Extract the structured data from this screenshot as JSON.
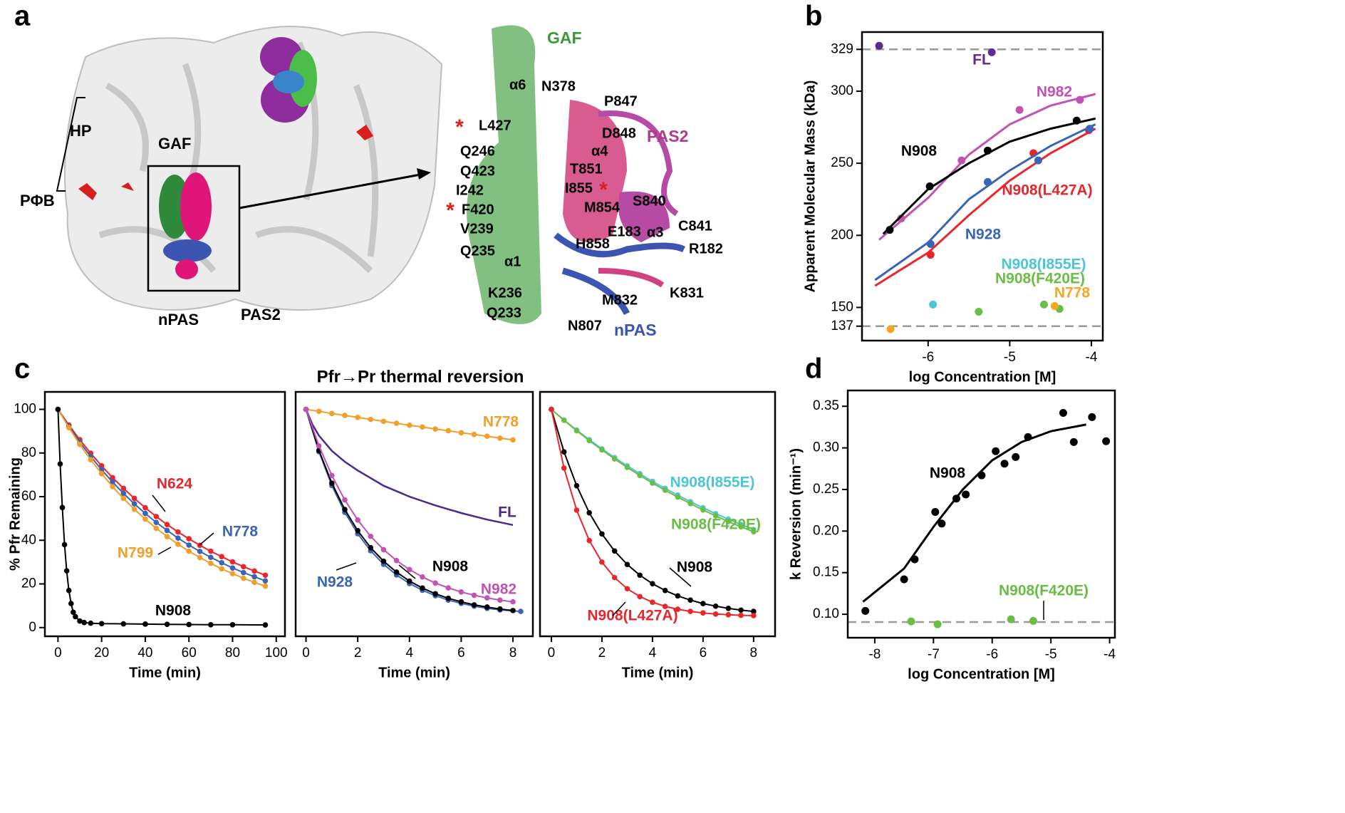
{
  "panel_letters": [
    "a",
    "b",
    "c",
    "d"
  ],
  "structure": {
    "left_labels": [
      "HP",
      "GAF",
      "PΦB",
      "nPAS",
      "PAS2"
    ],
    "right_labels": [
      {
        "text": "GAF",
        "color": "#3a9a3a"
      },
      {
        "text": "α6",
        "color": "#000000"
      },
      {
        "text": "N378",
        "color": "#000000"
      },
      {
        "text": "P847",
        "color": "#000000"
      },
      {
        "text": "L427",
        "color": "#000000"
      },
      {
        "text": "D848",
        "color": "#000000"
      },
      {
        "text": "PAS2",
        "color": "#b03a8c"
      },
      {
        "text": "α4",
        "color": "#000000"
      },
      {
        "text": "Q246",
        "color": "#000000"
      },
      {
        "text": "T851",
        "color": "#000000"
      },
      {
        "text": "Q423",
        "color": "#000000"
      },
      {
        "text": "I855",
        "color": "#000000"
      },
      {
        "text": "I242",
        "color": "#000000"
      },
      {
        "text": "S840",
        "color": "#000000"
      },
      {
        "text": "F420",
        "color": "#000000"
      },
      {
        "text": "M854",
        "color": "#000000"
      },
      {
        "text": "V239",
        "color": "#000000"
      },
      {
        "text": "E183",
        "color": "#000000"
      },
      {
        "text": "α3",
        "color": "#000000"
      },
      {
        "text": "C841",
        "color": "#000000"
      },
      {
        "text": "Q235",
        "color": "#000000"
      },
      {
        "text": "H858",
        "color": "#000000"
      },
      {
        "text": "R182",
        "color": "#000000"
      },
      {
        "text": "α1",
        "color": "#000000"
      },
      {
        "text": "K236",
        "color": "#000000"
      },
      {
        "text": "M832",
        "color": "#000000"
      },
      {
        "text": "K831",
        "color": "#000000"
      },
      {
        "text": "Q233",
        "color": "#000000"
      },
      {
        "text": "N807",
        "color": "#000000"
      },
      {
        "text": "nPAS",
        "color": "#3b55b0"
      }
    ]
  },
  "panel_c_title": "Pfr→Pr thermal reversion",
  "chart_data": [
    {
      "type": "scatter",
      "xlabel": "log Concentration [M]",
      "ylabel": "Apparent Molecular Mass (kDa)",
      "xlim": [
        -6.81,
        -3.86
      ],
      "ylim": [
        127,
        341
      ],
      "xticks": [
        -6,
        -5,
        -4
      ],
      "yticks": [
        137,
        150,
        200,
        250,
        300,
        329
      ],
      "ref_lines": [
        329,
        137
      ],
      "series": [
        {
          "name": "FL",
          "color": "#5b2d90",
          "x": [
            -6.6,
            -5.22
          ],
          "values": [
            331.5,
            327
          ]
        },
        {
          "name": "N982",
          "color": "#c153b5",
          "x": [
            -6.33,
            -5.59,
            -4.88,
            -4.14
          ],
          "values": [
            211.7,
            252,
            287,
            294
          ],
          "fit": {
            "x": [
              -6.6,
              -6,
              -5.5,
              -5,
              -4.5,
              -3.95
            ],
            "values": [
              197,
              226,
              256,
              277,
              290,
              298
            ]
          }
        },
        {
          "name": "N908",
          "color": "#000000",
          "x": [
            -6.47,
            -5.98,
            -5.27,
            -4.18
          ],
          "values": [
            203.8,
            234,
            258.8,
            279.6
          ],
          "fit": {
            "x": [
              -6.55,
              -6,
              -5.5,
              -5,
              -4.5,
              -3.95
            ],
            "values": [
              201,
              232,
              250,
              265,
              274,
              281
            ]
          }
        },
        {
          "name": "N908(L427A)",
          "color": "#e8262b",
          "x": [
            -5.97,
            -4.71,
            -4.03
          ],
          "values": [
            186.5,
            257,
            273
          ],
          "fit": {
            "x": [
              -6.65,
              -6,
              -5.5,
              -5,
              -4.5,
              -3.95
            ],
            "values": [
              165,
              188,
              214,
              238,
              257,
              274
            ]
          }
        },
        {
          "name": "N928",
          "color": "#3a64b5",
          "x": [
            -5.97,
            -5.27,
            -4.65,
            -4.02
          ],
          "values": [
            194,
            237,
            252,
            274
          ],
          "fit": {
            "x": [
              -6.65,
              -6,
              -5.5,
              -5,
              -4.5,
              -3.95
            ],
            "values": [
              169,
              195,
              225,
              245,
              262,
              277
            ]
          }
        },
        {
          "name": "N908(I855E)",
          "color": "#4ec5d6",
          "x": [
            -5.94
          ],
          "values": [
            152
          ]
        },
        {
          "name": "N908(F420E)",
          "color": "#6abd45",
          "x": [
            -5.38,
            -4.58,
            -4.39
          ],
          "values": [
            147,
            152,
            149
          ]
        },
        {
          "name": "N778",
          "color": "#f5a623",
          "x": [
            -6.46,
            -4.45
          ],
          "values": [
            135,
            151
          ]
        }
      ]
    },
    {
      "type": "line",
      "xlabel": "Time (min)",
      "ylabel": "% Pfr Remaining",
      "xlim": [
        -6,
        104
      ],
      "ylim": [
        -4,
        108
      ],
      "xticks": [
        0,
        20,
        40,
        60,
        80,
        100
      ],
      "yticks": [
        0,
        20,
        40,
        60,
        80,
        100
      ],
      "series": [
        {
          "name": "N624",
          "color": "#e8262b",
          "x": [
            0,
            5,
            10,
            15,
            20,
            25,
            30,
            35,
            40,
            45,
            50,
            55,
            60,
            65,
            70,
            75,
            80,
            85,
            90,
            95
          ],
          "values": [
            100,
            92.8,
            86.1,
            79.9,
            74.1,
            68.7,
            63.8,
            59.2,
            54.9,
            50.9,
            47.2,
            43.8,
            40.7,
            37.7,
            35.0,
            32.5,
            30.1,
            27.9,
            25.9,
            24.0
          ]
        },
        {
          "name": "N778",
          "color": "#3a64b5",
          "x": [
            0,
            5,
            10,
            15,
            20,
            25,
            30,
            35,
            40,
            45,
            50,
            55,
            60,
            65,
            70,
            75,
            80,
            85,
            90,
            95
          ],
          "values": [
            100,
            92.2,
            85.0,
            78.4,
            72.3,
            66.7,
            61.5,
            56.7,
            52.3,
            48.2,
            44.5,
            41.0,
            37.8,
            34.9,
            32.2,
            29.7,
            27.3,
            25.2,
            23.3,
            21.4
          ]
        },
        {
          "name": "N799",
          "color": "#f0a02a",
          "x": [
            0,
            5,
            10,
            15,
            20,
            25,
            30,
            35,
            40,
            45,
            50,
            55,
            60,
            65,
            70,
            75,
            80,
            85,
            90,
            95
          ],
          "values": [
            100,
            91.6,
            83.9,
            76.9,
            70.5,
            64.6,
            59.2,
            54.2,
            49.7,
            45.5,
            41.7,
            38.2,
            35.0,
            32.1,
            29.4,
            26.9,
            24.7,
            22.6,
            20.7,
            19.0
          ]
        },
        {
          "name": "N908",
          "color": "#000000",
          "x": [
            0,
            1,
            2,
            3,
            4,
            5,
            6,
            7,
            8,
            10,
            12,
            15,
            20,
            30,
            40,
            50,
            60,
            70,
            80,
            95
          ],
          "values": [
            100,
            75,
            55,
            38,
            26,
            17,
            11,
            7,
            5,
            3,
            2.3,
            2,
            1.8,
            1.7,
            1.6,
            1.5,
            1.4,
            1.3,
            1.3,
            1.2
          ]
        }
      ]
    },
    {
      "type": "line",
      "xlabel": "Time (min)",
      "xlim": [
        -0.4,
        8.77
      ],
      "ylim": [
        -4,
        108
      ],
      "xticks": [
        0,
        2,
        4,
        6,
        8
      ],
      "series": [
        {
          "name": "N778",
          "color": "#f0a02a",
          "x": [
            0,
            0.5,
            1,
            1.5,
            2,
            2.5,
            3,
            3.5,
            4,
            4.5,
            5,
            5.5,
            6,
            6.5,
            7,
            7.5,
            8
          ],
          "values": [
            100,
            99.1,
            98.1,
            97.2,
            96.3,
            95.4,
            94.5,
            93.6,
            92.7,
            91.9,
            91.0,
            90.2,
            89.3,
            88.5,
            87.7,
            86.8,
            86.0
          ]
        },
        {
          "name": "FL",
          "color": "#4b2a8f",
          "markers": false,
          "x": [
            0,
            0.25,
            0.5,
            1,
            1.5,
            2,
            3,
            4,
            5,
            6,
            7,
            8
          ],
          "values": [
            100,
            93,
            88,
            81,
            76,
            72,
            65,
            60,
            56,
            52.5,
            49.5,
            47
          ]
        },
        {
          "name": "N928",
          "color": "#3a64b5",
          "x": [
            0,
            0.5,
            1,
            1.5,
            2,
            2.5,
            3,
            3.5,
            4,
            4.5,
            5,
            5.5,
            6,
            6.5,
            7,
            7.5,
            8.3
          ],
          "values": [
            100,
            80.6,
            65.1,
            52.8,
            43.0,
            35.2,
            29.0,
            24.1,
            20.2,
            17.1,
            14.6,
            12.6,
            11.1,
            9.8,
            8.8,
            8.1,
            7.4
          ]
        },
        {
          "name": "N908",
          "color": "#000000",
          "x": [
            0,
            0.5,
            1,
            1.5,
            2,
            2.5,
            3,
            3.5,
            4,
            4.5,
            5,
            5.5,
            6,
            6.5,
            7,
            7.5,
            8
          ],
          "values": [
            100,
            81.2,
            66.2,
            54.1,
            44.4,
            36.6,
            30.4,
            25.4,
            21.3,
            18.1,
            15.5,
            13.4,
            11.8,
            10.4,
            9.4,
            8.5,
            7.8
          ]
        },
        {
          "name": "N982",
          "color": "#c153b5",
          "x": [
            0,
            0.5,
            1,
            1.5,
            2,
            2.5,
            3,
            3.5,
            4,
            4.5,
            5,
            5.5,
            6,
            6.5,
            7,
            7.5,
            8
          ],
          "values": [
            100,
            83.3,
            69.7,
            58.5,
            49.3,
            41.8,
            35.7,
            30.7,
            26.6,
            23.2,
            20.4,
            18.2,
            16.3,
            14.8,
            13.6,
            12.6,
            11.8
          ]
        }
      ]
    },
    {
      "type": "line",
      "xlabel": "Time (min)",
      "xlim": [
        -0.45,
        8.85
      ],
      "ylim": [
        -4,
        108
      ],
      "xticks": [
        0,
        2,
        4,
        6,
        8
      ],
      "series": [
        {
          "name": "N908(I855E)",
          "color": "#4ec5d6",
          "x": [
            0,
            0.5,
            1,
            1.5,
            2,
            2.5,
            3,
            3.5,
            4,
            4.5,
            5,
            5.5,
            6,
            6.5,
            7,
            7.5,
            8
          ],
          "values": [
            100,
            95.1,
            90.5,
            86.1,
            81.9,
            77.9,
            74.1,
            70.5,
            67.0,
            63.8,
            60.7,
            57.7,
            54.9,
            52.2,
            49.7,
            47.2,
            44.9
          ]
        },
        {
          "name": "N908(F420E)",
          "color": "#6abd45",
          "x": [
            0,
            0.5,
            1,
            1.5,
            2,
            2.5,
            3,
            3.5,
            4,
            4.5,
            5,
            5.5,
            6,
            6.5,
            7,
            7.5,
            8
          ],
          "values": [
            100,
            95.0,
            90.2,
            85.7,
            81.4,
            77.3,
            73.4,
            69.7,
            66.2,
            62.9,
            59.8,
            56.8,
            53.9,
            51.2,
            48.6,
            46.2,
            43.9
          ]
        },
        {
          "name": "N908",
          "color": "#000000",
          "x": [
            0,
            0.5,
            1,
            1.5,
            2,
            2.5,
            3,
            3.5,
            4,
            4.5,
            5,
            5.5,
            6,
            6.5,
            7,
            7.5,
            8
          ],
          "values": [
            100,
            80.5,
            65.0,
            52.6,
            42.9,
            35.1,
            28.9,
            24.0,
            20.1,
            17.0,
            14.5,
            12.6,
            11.0,
            9.8,
            8.8,
            8.0,
            7.4
          ]
        },
        {
          "name": "N908(L427A)",
          "color": "#e8262b",
          "x": [
            0,
            0.5,
            1,
            1.5,
            2,
            2.5,
            3,
            3.5,
            4,
            4.5,
            5,
            5.5,
            6,
            6.5,
            7,
            7.5,
            8
          ],
          "values": [
            100,
            73.1,
            53.8,
            39.9,
            30.0,
            22.9,
            17.8,
            14.2,
            11.6,
            9.7,
            8.4,
            7.4,
            6.7,
            6.2,
            5.9,
            5.6,
            5.5
          ]
        }
      ]
    },
    {
      "type": "scatter",
      "xlabel": "log Concentration [M]",
      "ylabel": "k Reversion (min⁻¹)",
      "xlim": [
        -8.46,
        -3.91
      ],
      "ylim": [
        0.0718,
        0.369
      ],
      "xticks": [
        -8,
        -7,
        -6,
        -5,
        -4
      ],
      "yticks": [
        {
          "value": 0.1,
          "label": "0.10"
        },
        0.15,
        {
          "value": 0.2,
          "label": "0.20"
        },
        0.25,
        {
          "value": 0.3,
          "label": "0.30"
        },
        0.35
      ],
      "ref_lines": [
        0.0906
      ],
      "series": [
        {
          "name": "N908",
          "color": "#000000",
          "x": [
            -8.16,
            -7.5,
            -7.32,
            -6.97,
            -6.86,
            -6.61,
            -6.45,
            -6.18,
            -5.94,
            -5.79,
            -5.6,
            -5.39,
            -4.79,
            -4.61,
            -4.3,
            -4.06
          ],
          "values": [
            0.104,
            0.142,
            0.166,
            0.223,
            0.209,
            0.239,
            0.244,
            0.267,
            0.296,
            0.281,
            0.289,
            0.313,
            0.342,
            0.307,
            0.337,
            0.308
          ],
          "fit": {
            "x": [
              -8.2,
              -7.5,
              -7,
              -6.5,
              -6,
              -5.5,
              -5,
              -4.4
            ],
            "values": [
              0.115,
              0.155,
              0.205,
              0.25,
              0.285,
              0.307,
              0.32,
              0.328
            ]
          }
        },
        {
          "name": "N908(F420E)",
          "color": "#6abd45",
          "x": [
            -7.38,
            -6.93,
            -5.68,
            -5.3
          ],
          "values": [
            0.0914,
            0.088,
            0.094,
            0.092
          ]
        }
      ]
    }
  ]
}
